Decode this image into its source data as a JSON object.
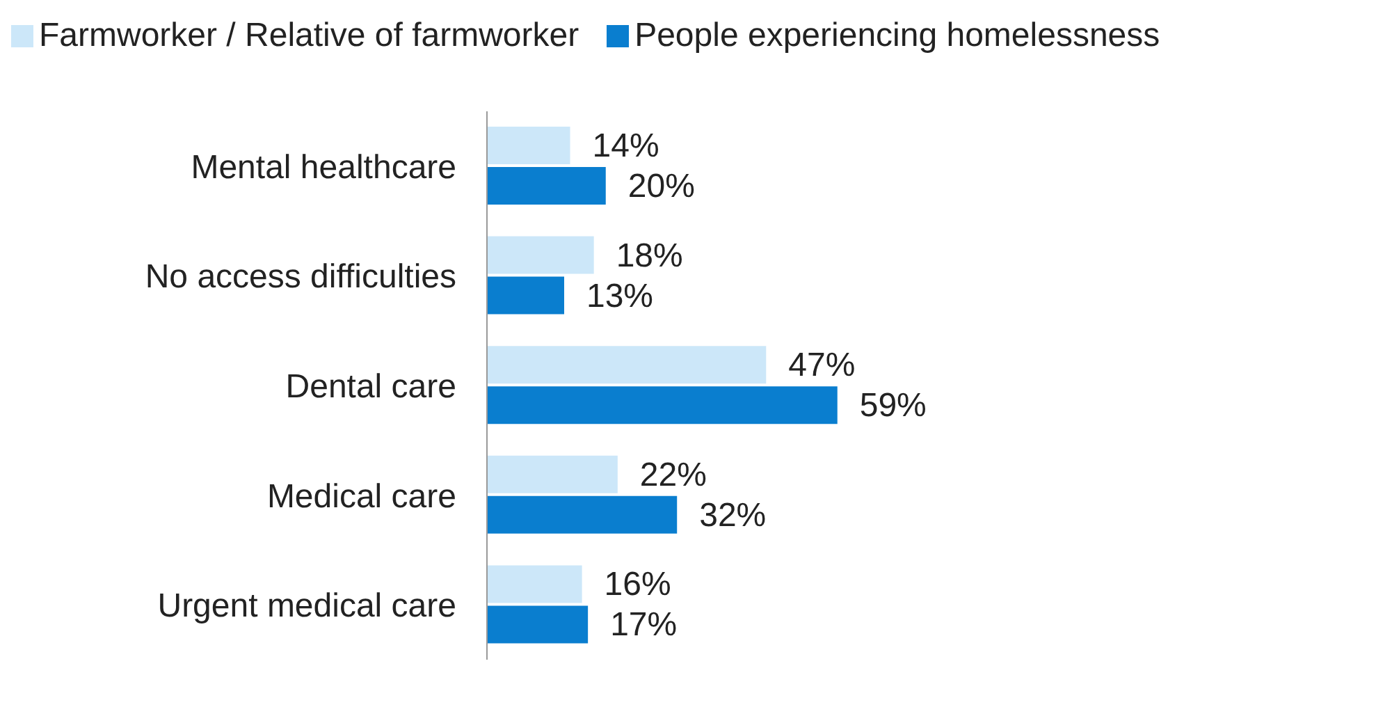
{
  "chart_data": {
    "type": "bar",
    "orientation": "horizontal",
    "legend": "top",
    "categories": [
      "Mental healthcare",
      "No access difficulties",
      "Dental care",
      "Medical care",
      "Urgent medical care"
    ],
    "series": [
      {
        "name": "Farmworker / Relative of farmworker",
        "color": "#cce7f9",
        "values": [
          14,
          18,
          47,
          22,
          16
        ],
        "value_labels": [
          "14%",
          "18%",
          "47%",
          "22%",
          "16%"
        ]
      },
      {
        "name": "People experiencing homelessness",
        "color": "#0a7ecf",
        "values": [
          20,
          13,
          59,
          32,
          17
        ],
        "value_labels": [
          "20%",
          "13%",
          "59%",
          "32%",
          "17%"
        ]
      }
    ]
  }
}
